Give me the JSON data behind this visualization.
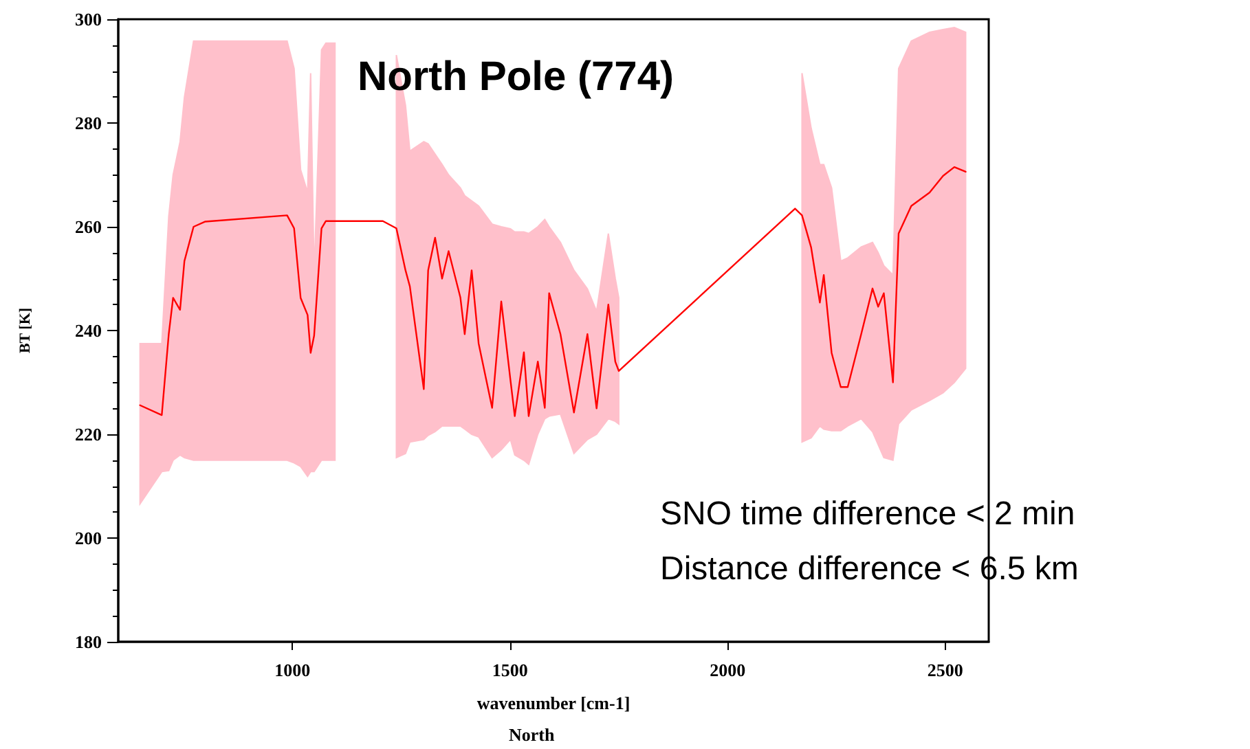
{
  "chart_data": {
    "type": "line",
    "title": "North Pole (774)",
    "xlabel": "wavenumber [cm-1]",
    "ylabel": "BT [K]",
    "annotations": [
      "SNO time difference < 2 min",
      "Distance difference < 6.5 km",
      "North"
    ],
    "xlim": [
      600,
      2600
    ],
    "xticks": [
      1000,
      1500,
      2000,
      2500
    ],
    "ylim": [
      180,
      300
    ],
    "yticks": [
      180,
      200,
      220,
      240,
      260,
      280,
      300
    ],
    "grid": false,
    "marker": "none",
    "line_style": "solid",
    "series": [
      {
        "color": "#ff0000",
        "x": [
          650,
          700,
          716,
          726,
          742,
          752,
          773,
          800,
          988,
          1004,
          1019,
          1035,
          1042,
          1050,
          1067,
          1077,
          1098,
          1208,
          1239,
          1260,
          1270,
          1302,
          1312,
          1328,
          1344,
          1359,
          1386,
          1396,
          1412,
          1428,
          1459,
          1480,
          1501,
          1511,
          1532,
          1543,
          1564,
          1580,
          1590,
          1616,
          1647,
          1678,
          1699,
          1726,
          1742,
          1750,
          2155,
          2171,
          2192,
          2212,
          2221,
          2239,
          2260,
          2276,
          2307,
          2333,
          2346,
          2359,
          2380,
          2393,
          2422,
          2464,
          2495,
          2521,
          2547
        ],
        "values": [
          225.6,
          223.7,
          239.3,
          246.3,
          244,
          253.4,
          260,
          261,
          262.2,
          259.7,
          246.3,
          243,
          235.7,
          239,
          259.7,
          261.1,
          261.1,
          261.1,
          259.7,
          251.6,
          248.5,
          228.7,
          251.6,
          257.9,
          250,
          255.3,
          246.4,
          239.3,
          251.6,
          237.5,
          225.1,
          245.6,
          230.5,
          223.5,
          235.8,
          223.5,
          234,
          225.1,
          247.2,
          239.3,
          224.2,
          239.3,
          225,
          245,
          234,
          232.2,
          263.5,
          262.2,
          256,
          245.4,
          250.7,
          235.7,
          229.1,
          229.1,
          239.3,
          248.1,
          244.6,
          247.2,
          230,
          258.7,
          264,
          266.6,
          269.8,
          271.5,
          270.6
        ],
        "upper": [
          237.5,
          237.5,
          262,
          270,
          276.4,
          285,
          295.8,
          295.8,
          295.8,
          290.5,
          271,
          266.6,
          289.6,
          250.6,
          294.1,
          295.4,
          295.4,
          null,
          293.1,
          283.4,
          274.6,
          276.4,
          276,
          274,
          272,
          270,
          267.5,
          266,
          265,
          264,
          260.5,
          260,
          259.6,
          259,
          259,
          258.7,
          260,
          261.4,
          260,
          257,
          251.6,
          248,
          243.7,
          258.7,
          250,
          246.3,
          null,
          289.6,
          279,
          272,
          272,
          267.5,
          253.4,
          254,
          256.1,
          257,
          255,
          252.5,
          250.7,
          290.5,
          295.8,
          297.5,
          298,
          298.4,
          297.5
        ],
        "lower": [
          206.6,
          212.8,
          213,
          215,
          216,
          215.5,
          215,
          215,
          215,
          214.5,
          213.8,
          211.9,
          212.8,
          212.8,
          215,
          215,
          215,
          null,
          215.5,
          216.3,
          218.5,
          219,
          219.8,
          220.5,
          221.6,
          221.6,
          221.6,
          221,
          220,
          219.5,
          215.5,
          217,
          219,
          216,
          215,
          214.2,
          220,
          223,
          223.5,
          223.9,
          216.3,
          219,
          220,
          223,
          222.5,
          222,
          null,
          218.5,
          219.3,
          221.6,
          221,
          220.7,
          220.7,
          221.6,
          223,
          220.5,
          218,
          215.5,
          215,
          222,
          224.7,
          226.5,
          228,
          230,
          232.7
        ]
      }
    ]
  }
}
